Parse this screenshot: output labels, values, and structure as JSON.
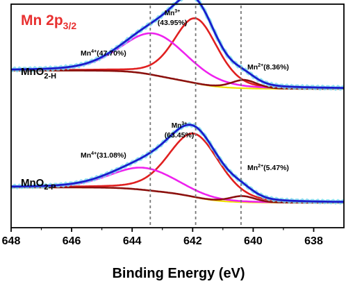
{
  "chart_data": {
    "type": "line",
    "xlabel": "Binding Energy (eV)",
    "xlim": [
      648,
      637
    ],
    "x_reversed": true,
    "xticks": [
      {
        "value": 648,
        "label": "648"
      },
      {
        "value": 646,
        "label": "646"
      },
      {
        "value": 644,
        "label": "644"
      },
      {
        "value": 642,
        "label": "642"
      },
      {
        "value": 640,
        "label": "640"
      },
      {
        "value": 638,
        "label": "638"
      }
    ],
    "title": {
      "base": "Mn 2p",
      "sub": "3/2"
    },
    "reference_lines_ev": [
      643.4,
      641.9,
      640.4
    ],
    "colors": {
      "raw": "#7fdcf0",
      "fit": "#1a1acc",
      "mn3": "#e02020",
      "mn4": "#ee22ee",
      "mn2": "#8b1010",
      "background": "#f0e000",
      "title": "#e83030",
      "refline": "#777777"
    },
    "panels": [
      {
        "label": {
          "base": "MnO",
          "sub": "2-H"
        },
        "annotations": [
          {
            "sup": "3+",
            "pct": "(43.95%)"
          },
          {
            "sup": "4+",
            "pct": "(47.70%)"
          },
          {
            "sup": "2+",
            "pct": "(8.36%)"
          }
        ],
        "peaks": [
          {
            "name": "Mn3+",
            "center": 641.9,
            "height": 0.78,
            "fwhm": 1.7
          },
          {
            "name": "Mn4+",
            "center": 643.25,
            "height": 0.5,
            "fwhm": 2.6
          },
          {
            "name": "Mn2+",
            "center": 640.3,
            "height": 0.1,
            "fwhm": 1.0
          }
        ]
      },
      {
        "label": {
          "base": "MnO",
          "sub": "2-P"
        },
        "annotations": [
          {
            "sup": "3+",
            "pct": "(63.45%)"
          },
          {
            "sup": "4+",
            "pct": "(31.08%)"
          },
          {
            "sup": "2+",
            "pct": "(5.47%)"
          }
        ],
        "peaks": [
          {
            "name": "Mn3+",
            "center": 641.95,
            "height": 0.83,
            "fwhm": 2.0
          },
          {
            "name": "Mn4+",
            "center": 643.6,
            "height": 0.29,
            "fwhm": 2.6
          },
          {
            "name": "Mn2+",
            "center": 640.35,
            "height": 0.08,
            "fwhm": 1.0
          }
        ]
      }
    ],
    "ion_symbol": "Mn",
    "grid": false,
    "legend": "none"
  }
}
